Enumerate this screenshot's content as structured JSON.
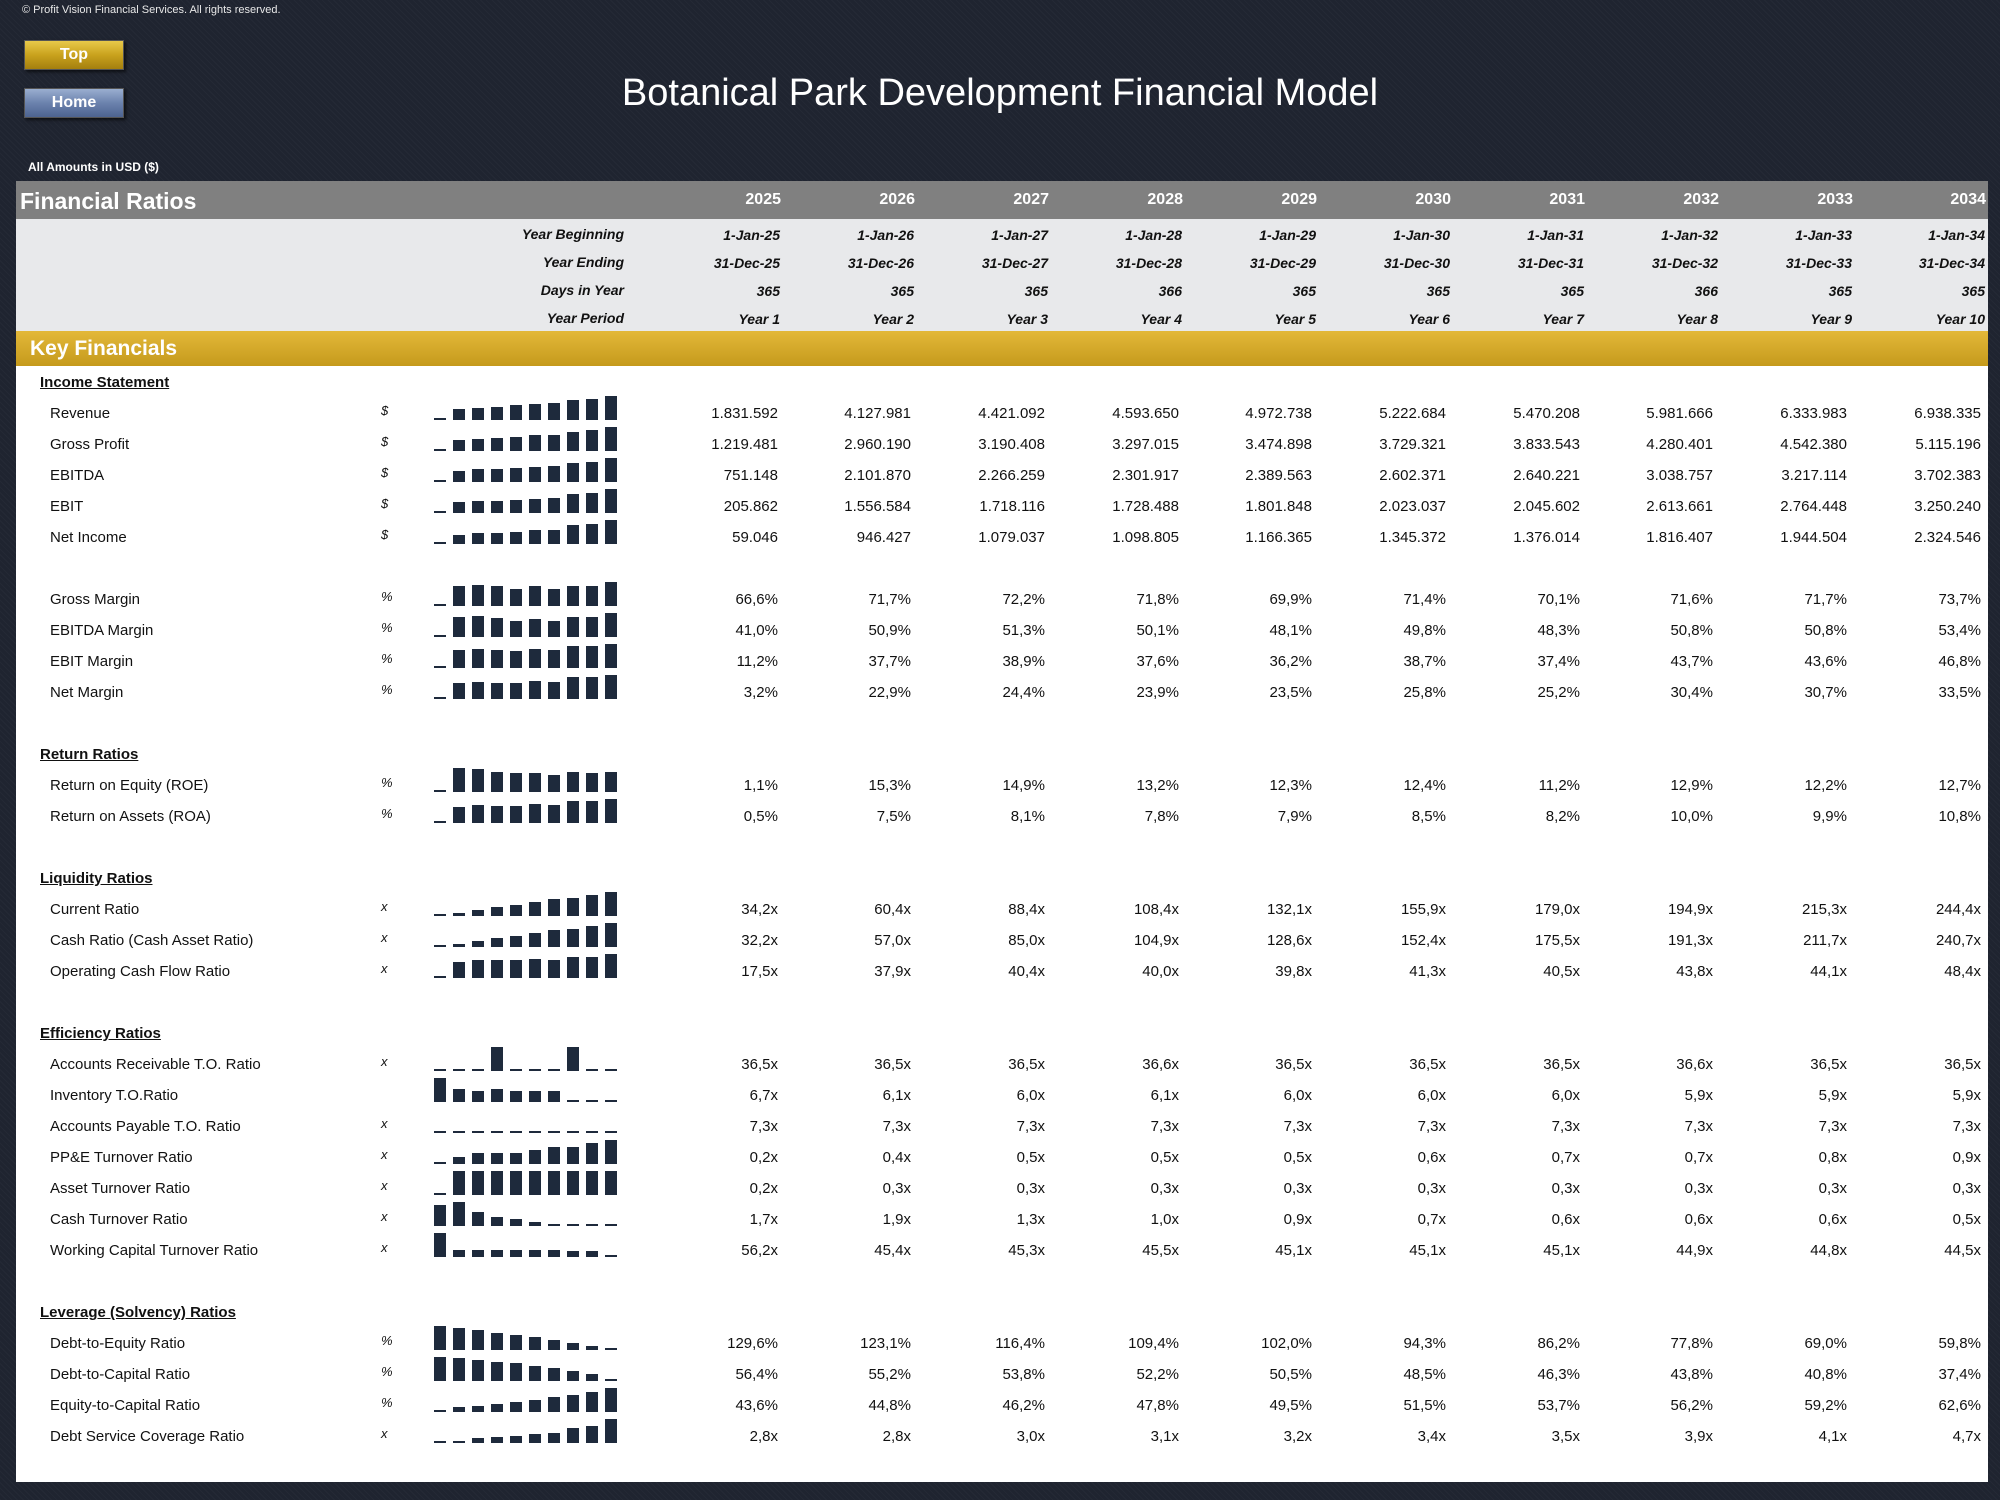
{
  "copyright": "© Profit Vision Financial Services. All rights reserved.",
  "buttons": {
    "top": "Top",
    "home": "Home"
  },
  "title": "Botanical Park Development Financial Model",
  "currency_note": "All Amounts in  USD ($)",
  "header": {
    "section_title": "Financial Ratios",
    "years": [
      "2025",
      "2026",
      "2027",
      "2028",
      "2029",
      "2030",
      "2031",
      "2032",
      "2033",
      "2034"
    ]
  },
  "periods": {
    "labels": [
      "Year Beginning",
      "Year Ending",
      "Days in Year",
      "Year Period"
    ],
    "rows": [
      [
        "1-Jan-25",
        "1-Jan-26",
        "1-Jan-27",
        "1-Jan-28",
        "1-Jan-29",
        "1-Jan-30",
        "1-Jan-31",
        "1-Jan-32",
        "1-Jan-33",
        "1-Jan-34"
      ],
      [
        "31-Dec-25",
        "31-Dec-26",
        "31-Dec-27",
        "31-Dec-28",
        "31-Dec-29",
        "31-Dec-30",
        "31-Dec-31",
        "31-Dec-32",
        "31-Dec-33",
        "31-Dec-34"
      ],
      [
        "365",
        "365",
        "365",
        "366",
        "365",
        "365",
        "365",
        "366",
        "365",
        "365"
      ],
      [
        "Year 1",
        "Year 2",
        "Year 3",
        "Year 4",
        "Year 5",
        "Year 6",
        "Year 7",
        "Year 8",
        "Year 9",
        "Year 10"
      ]
    ]
  },
  "key_financials_title": "Key Financials",
  "sections": [
    {
      "title": "Income Statement",
      "rows": [
        {
          "label": "Revenue",
          "unit": "$",
          "values": [
            "1.831.592",
            "4.127.981",
            "4.421.092",
            "4.593.650",
            "4.972.738",
            "5.222.684",
            "5.470.208",
            "5.981.666",
            "6.333.983",
            "6.938.335"
          ]
        },
        {
          "label": "Gross Profit",
          "unit": "$",
          "values": [
            "1.219.481",
            "2.960.190",
            "3.190.408",
            "3.297.015",
            "3.474.898",
            "3.729.321",
            "3.833.543",
            "4.280.401",
            "4.542.380",
            "5.115.196"
          ]
        },
        {
          "label": "EBITDA",
          "unit": "$",
          "values": [
            "751.148",
            "2.101.870",
            "2.266.259",
            "2.301.917",
            "2.389.563",
            "2.602.371",
            "2.640.221",
            "3.038.757",
            "3.217.114",
            "3.702.383"
          ]
        },
        {
          "label": "EBIT",
          "unit": "$",
          "values": [
            "205.862",
            "1.556.584",
            "1.718.116",
            "1.728.488",
            "1.801.848",
            "2.023.037",
            "2.045.602",
            "2.613.661",
            "2.764.448",
            "3.250.240"
          ]
        },
        {
          "label": "Net Income",
          "unit": "$",
          "values": [
            "59.046",
            "946.427",
            "1.079.037",
            "1.098.805",
            "1.166.365",
            "1.345.372",
            "1.376.014",
            "1.816.407",
            "1.944.504",
            "2.324.546"
          ]
        }
      ]
    },
    {
      "title": "",
      "rows": [
        {
          "label": "Gross Margin",
          "unit": "%",
          "values": [
            "66,6%",
            "71,7%",
            "72,2%",
            "71,8%",
            "69,9%",
            "71,4%",
            "70,1%",
            "71,6%",
            "71,7%",
            "73,7%"
          ]
        },
        {
          "label": "EBITDA Margin",
          "unit": "%",
          "values": [
            "41,0%",
            "50,9%",
            "51,3%",
            "50,1%",
            "48,1%",
            "49,8%",
            "48,3%",
            "50,8%",
            "50,8%",
            "53,4%"
          ]
        },
        {
          "label": "EBIT Margin",
          "unit": "%",
          "values": [
            "11,2%",
            "37,7%",
            "38,9%",
            "37,6%",
            "36,2%",
            "38,7%",
            "37,4%",
            "43,7%",
            "43,6%",
            "46,8%"
          ]
        },
        {
          "label": "Net Margin",
          "unit": "%",
          "values": [
            "3,2%",
            "22,9%",
            "24,4%",
            "23,9%",
            "23,5%",
            "25,8%",
            "25,2%",
            "30,4%",
            "30,7%",
            "33,5%"
          ]
        }
      ]
    },
    {
      "title": "Return Ratios",
      "rows": [
        {
          "label": "Return on Equity (ROE)",
          "unit": "%",
          "values": [
            "1,1%",
            "15,3%",
            "14,9%",
            "13,2%",
            "12,3%",
            "12,4%",
            "11,2%",
            "12,9%",
            "12,2%",
            "12,7%"
          ]
        },
        {
          "label": "Return on Assets (ROA)",
          "unit": "%",
          "values": [
            "0,5%",
            "7,5%",
            "8,1%",
            "7,8%",
            "7,9%",
            "8,5%",
            "8,2%",
            "10,0%",
            "9,9%",
            "10,8%"
          ]
        }
      ]
    },
    {
      "title": "Liquidity Ratios",
      "rows": [
        {
          "label": "Current Ratio",
          "unit": "x",
          "values": [
            "34,2x",
            "60,4x",
            "88,4x",
            "108,4x",
            "132,1x",
            "155,9x",
            "179,0x",
            "194,9x",
            "215,3x",
            "244,4x"
          ]
        },
        {
          "label": "Cash Ratio (Cash Asset Ratio)",
          "unit": "x",
          "values": [
            "32,2x",
            "57,0x",
            "85,0x",
            "104,9x",
            "128,6x",
            "152,4x",
            "175,5x",
            "191,3x",
            "211,7x",
            "240,7x"
          ]
        },
        {
          "label": "Operating Cash Flow Ratio",
          "unit": "x",
          "values": [
            "17,5x",
            "37,9x",
            "40,4x",
            "40,0x",
            "39,8x",
            "41,3x",
            "40,5x",
            "43,8x",
            "44,1x",
            "48,4x"
          ]
        }
      ]
    },
    {
      "title": "Efficiency Ratios",
      "rows": [
        {
          "label": "Accounts Receivable T.O. Ratio",
          "unit": "x",
          "values": [
            "36,5x",
            "36,5x",
            "36,5x",
            "36,6x",
            "36,5x",
            "36,5x",
            "36,5x",
            "36,6x",
            "36,5x",
            "36,5x"
          ]
        },
        {
          "label": "Inventory T.O.Ratio",
          "unit": "",
          "values": [
            "6,7x",
            "6,1x",
            "6,0x",
            "6,1x",
            "6,0x",
            "6,0x",
            "6,0x",
            "5,9x",
            "5,9x",
            "5,9x"
          ]
        },
        {
          "label": "Accounts Payable T.O. Ratio",
          "unit": "x",
          "values": [
            "7,3x",
            "7,3x",
            "7,3x",
            "7,3x",
            "7,3x",
            "7,3x",
            "7,3x",
            "7,3x",
            "7,3x",
            "7,3x"
          ]
        },
        {
          "label": "PP&E Turnover Ratio",
          "unit": "x",
          "values": [
            "0,2x",
            "0,4x",
            "0,5x",
            "0,5x",
            "0,5x",
            "0,6x",
            "0,7x",
            "0,7x",
            "0,8x",
            "0,9x"
          ]
        },
        {
          "label": "Asset Turnover Ratio",
          "unit": "x",
          "values": [
            "0,2x",
            "0,3x",
            "0,3x",
            "0,3x",
            "0,3x",
            "0,3x",
            "0,3x",
            "0,3x",
            "0,3x",
            "0,3x"
          ]
        },
        {
          "label": "Cash Turnover Ratio",
          "unit": "x",
          "values": [
            "1,7x",
            "1,9x",
            "1,3x",
            "1,0x",
            "0,9x",
            "0,7x",
            "0,6x",
            "0,6x",
            "0,6x",
            "0,5x"
          ]
        },
        {
          "label": "Working Capital Turnover Ratio",
          "unit": "x",
          "values": [
            "56,2x",
            "45,4x",
            "45,3x",
            "45,5x",
            "45,1x",
            "45,1x",
            "45,1x",
            "44,9x",
            "44,8x",
            "44,5x"
          ]
        }
      ]
    },
    {
      "title": "Leverage (Solvency) Ratios",
      "rows": [
        {
          "label": "Debt-to-Equity Ratio",
          "unit": "%",
          "values": [
            "129,6%",
            "123,1%",
            "116,4%",
            "109,4%",
            "102,0%",
            "94,3%",
            "86,2%",
            "77,8%",
            "69,0%",
            "59,8%"
          ]
        },
        {
          "label": "Debt-to-Capital Ratio",
          "unit": "%",
          "values": [
            "56,4%",
            "55,2%",
            "53,8%",
            "52,2%",
            "50,5%",
            "48,5%",
            "46,3%",
            "43,8%",
            "40,8%",
            "37,4%"
          ]
        },
        {
          "label": "Equity-to-Capital Ratio",
          "unit": "%",
          "values": [
            "43,6%",
            "44,8%",
            "46,2%",
            "47,8%",
            "49,5%",
            "51,5%",
            "53,7%",
            "56,2%",
            "59,2%",
            "62,6%"
          ]
        },
        {
          "label": "Debt Service Coverage Ratio",
          "unit": "x",
          "values": [
            "2,8x",
            "2,8x",
            "3,0x",
            "3,1x",
            "3,2x",
            "3,4x",
            "3,5x",
            "3,9x",
            "4,1x",
            "4,7x"
          ]
        }
      ]
    }
  ]
}
